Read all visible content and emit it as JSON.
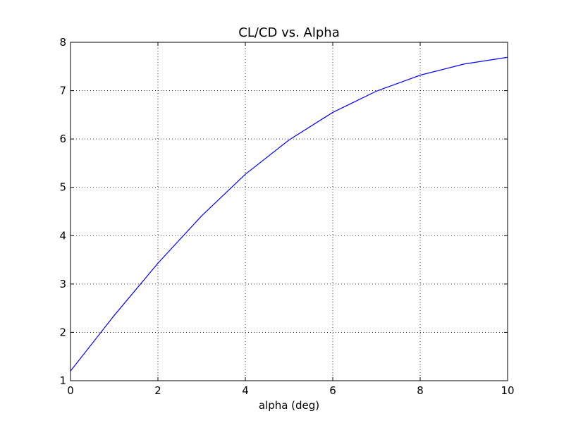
{
  "chart_data": {
    "type": "line",
    "title": "CL/CD vs. Alpha",
    "xlabel": "alpha (deg)",
    "ylabel": "",
    "xlim": [
      0,
      10
    ],
    "ylim": [
      1,
      8
    ],
    "x_ticks": [
      "0",
      "2",
      "4",
      "6",
      "8",
      "10"
    ],
    "y_ticks": [
      "1",
      "2",
      "3",
      "4",
      "5",
      "6",
      "7",
      "8"
    ],
    "grid": true,
    "legend": "none",
    "series": [
      {
        "color": "#0000ff",
        "x": [
          0,
          1,
          2,
          3,
          4,
          5,
          6,
          7,
          8,
          9,
          10
        ],
        "y": [
          1.2,
          2.35,
          3.43,
          4.41,
          5.27,
          5.98,
          6.55,
          6.99,
          7.32,
          7.55,
          7.69
        ]
      }
    ]
  }
}
